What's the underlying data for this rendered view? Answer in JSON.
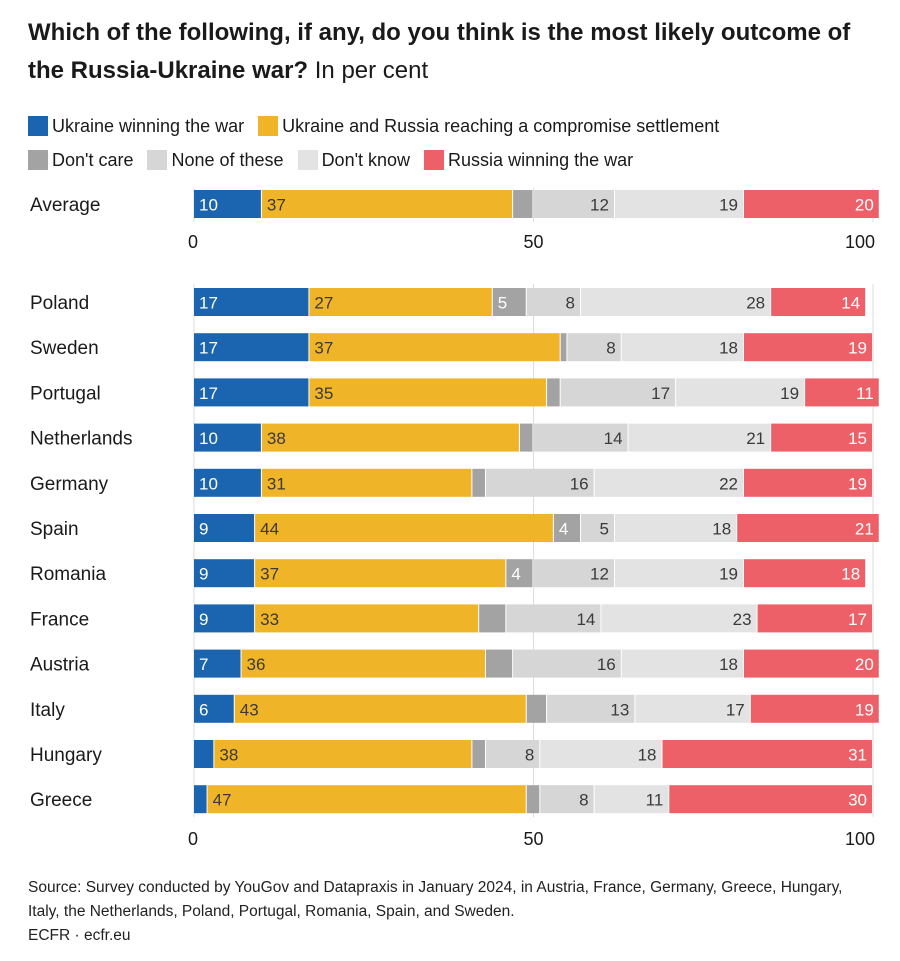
{
  "title": {
    "bold": "Which of the following, if any, do you think is the most likely outcome of the Russia-Ukraine war?",
    "unit": "In per cent"
  },
  "legend": {
    "rows": [
      [
        {
          "name": "Ukraine winning the war",
          "color": "#1b64b0"
        },
        {
          "name": "Ukraine and Russia reaching a compromise settlement",
          "color": "#f0b429"
        }
      ],
      [
        {
          "name": "Don't care",
          "color": "#a3a3a3"
        },
        {
          "name": "None of these",
          "color": "#d6d6d6"
        },
        {
          "name": "Don't know",
          "color": "#e3e3e3"
        },
        {
          "name": "Russia winning the war",
          "color": "#ee6068"
        }
      ]
    ]
  },
  "chart_data": {
    "type": "bar",
    "orientation": "horizontal",
    "stacked": true,
    "xlim": [
      0,
      100
    ],
    "ticks": [
      "0",
      "50",
      "100"
    ],
    "series_names": [
      "Ukraine winning the war",
      "Ukraine and Russia reaching a compromise settlement",
      "Don't care",
      "None of these",
      "Don't know",
      "Russia winning the war"
    ],
    "series_colors": [
      "#1b64b0",
      "#f0b429",
      "#a3a3a3",
      "#d6d6d6",
      "#e3e3e3",
      "#ee6068"
    ],
    "average": {
      "category": "Average",
      "values": [
        10,
        37,
        3,
        12,
        19,
        20
      ],
      "labels": [
        "10",
        "37",
        "",
        "12",
        "19",
        "20"
      ]
    },
    "categories": [
      "Poland",
      "Sweden",
      "Portugal",
      "Netherlands",
      "Germany",
      "Spain",
      "Romania",
      "France",
      "Austria",
      "Italy",
      "Hungary",
      "Greece"
    ],
    "values": [
      [
        17,
        27,
        5,
        8,
        28,
        14
      ],
      [
        17,
        37,
        1,
        8,
        18,
        19
      ],
      [
        17,
        35,
        2,
        17,
        19,
        11
      ],
      [
        10,
        38,
        2,
        14,
        21,
        15
      ],
      [
        10,
        31,
        2,
        16,
        22,
        19
      ],
      [
        9,
        44,
        4,
        5,
        18,
        21
      ],
      [
        9,
        37,
        4,
        12,
        19,
        18
      ],
      [
        9,
        33,
        4,
        14,
        23,
        17
      ],
      [
        7,
        36,
        4,
        16,
        18,
        20
      ],
      [
        6,
        43,
        3,
        13,
        17,
        19
      ],
      [
        3,
        38,
        2,
        8,
        18,
        31
      ],
      [
        2,
        47,
        2,
        8,
        11,
        30
      ]
    ],
    "labels": [
      [
        "17",
        "27",
        "5",
        "8",
        "28",
        "14"
      ],
      [
        "17",
        "37",
        "",
        "8",
        "18",
        "19"
      ],
      [
        "17",
        "35",
        "",
        "17",
        "19",
        "11"
      ],
      [
        "10",
        "38",
        "",
        "14",
        "21",
        "15"
      ],
      [
        "10",
        "31",
        "",
        "16",
        "22",
        "19"
      ],
      [
        "9",
        "44",
        "4",
        "5",
        "18",
        "21"
      ],
      [
        "9",
        "37",
        "4",
        "12",
        "19",
        "18"
      ],
      [
        "9",
        "33",
        "",
        "14",
        "23",
        "17"
      ],
      [
        "7",
        "36",
        "",
        "16",
        "18",
        "20"
      ],
      [
        "6",
        "43",
        "",
        "13",
        "17",
        "19"
      ],
      [
        "",
        "38",
        "",
        "8",
        "18",
        "31"
      ],
      [
        "",
        "47",
        "",
        "8",
        "11",
        "30"
      ]
    ]
  },
  "source": {
    "line1": "Source: Survey conducted by YouGov and Datapraxis in January 2024, in Austria, France, Germany, Greece, Hungary, Italy, the Netherlands, Poland, Portugal, Romania, Spain, and Sweden.",
    "line2": "ECFR · ecfr.eu"
  }
}
